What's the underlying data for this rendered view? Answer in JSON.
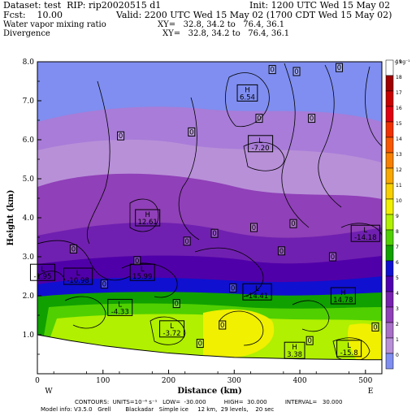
{
  "header": {
    "dataset": "Dataset: test  RIP: rip20020515 d1",
    "init": "Init: 1200 UTC Wed 15 May 02",
    "fcst": "Fcst:    10.00",
    "valid": "Valid: 2200 UTC Wed 15 May 02 (1700 CDT Wed 15 May 02)",
    "field1": "Water vapor mixing ratio",
    "field1_xy": "XY=   32.8, 34.2 to   76.4, 36.1",
    "field2": "Divergence",
    "field2_xy": "XY=   32.8, 34.2 to   76.4, 36.1"
  },
  "footer": {
    "line1": "CONTOURS:  UNITS=10⁻⁶ s⁻¹   LOW=  -30.000          HIGH=  30.000          INTERVAL=   30.000",
    "line2": "Model info: V3.5.0   Grell        Blackadar   Simple ice     12 km,  29 levels,    20 sec"
  },
  "chart_data": {
    "type": "heatmap",
    "xlabel": "Distance (km)",
    "ylabel": "Height (km)",
    "xlim": [
      0,
      525
    ],
    "ylim": [
      0,
      8
    ],
    "x_ticks": [
      0,
      100,
      200,
      300,
      400,
      500
    ],
    "y_ticks": [
      {
        "value": 1,
        "label": "1.0"
      },
      {
        "value": 2,
        "label": "2.0"
      },
      {
        "value": 3,
        "label": "3.0"
      },
      {
        "value": 4,
        "label": "4.0"
      },
      {
        "value": 5,
        "label": "5.0"
      },
      {
        "value": 6,
        "label": "6.0"
      },
      {
        "value": 7,
        "label": "7.0"
      },
      {
        "value": 8,
        "label": "8.0"
      }
    ],
    "x_end_labels": {
      "left": "W",
      "right": "E"
    },
    "colorbar": {
      "unit": "g kg⁻¹",
      "levels": [
        19,
        18,
        17,
        16,
        15,
        14,
        13,
        12,
        11,
        10,
        9,
        8,
        7,
        6,
        5,
        4,
        3,
        2,
        1,
        0
      ],
      "colors": [
        "#ffffff",
        "#a00000",
        "#c80000",
        "#e00010",
        "#f03000",
        "#f85800",
        "#f88000",
        "#f8a800",
        "#f8d000",
        "#f0f000",
        "#b0f000",
        "#50d000",
        "#10a000",
        "#1010d0",
        "#5000b0",
        "#7820b0",
        "#9040b8",
        "#a870c8",
        "#b890d8",
        "#7f8ef0"
      ]
    },
    "terrain_km": [
      [
        0,
        1.0
      ],
      [
        50,
        0.85
      ],
      [
        100,
        0.72
      ],
      [
        150,
        0.62
      ],
      [
        200,
        0.53
      ],
      [
        250,
        0.47
      ],
      [
        300,
        0.42
      ],
      [
        350,
        0.4
      ],
      [
        400,
        0.38
      ],
      [
        450,
        0.37
      ],
      [
        500,
        0.36
      ],
      [
        525,
        0.36
      ]
    ],
    "annotations": [
      {
        "type": "H",
        "value": "6.54",
        "x": 320,
        "y": 7.2
      },
      {
        "type": "L",
        "value": "-7.20",
        "x": 340,
        "y": 5.9
      },
      {
        "type": "H",
        "value": "12.61",
        "x": 168,
        "y": 4.0
      },
      {
        "type": "L",
        "value": "-14.18",
        "x": 500,
        "y": 3.6
      },
      {
        "type": "L",
        "value": "-1.95",
        "x": 8,
        "y": 2.6
      },
      {
        "type": "L",
        "value": "-10.98",
        "x": 62,
        "y": 2.5
      },
      {
        "type": "L",
        "value": "15.99",
        "x": 160,
        "y": 2.6
      },
      {
        "type": "L",
        "value": "-14.41",
        "x": 335,
        "y": 2.1
      },
      {
        "type": "H",
        "value": "14.78",
        "x": 466,
        "y": 2.0
      },
      {
        "type": "L",
        "value": "-4.33",
        "x": 126,
        "y": 1.7
      },
      {
        "type": "L",
        "value": "-3.72",
        "x": 205,
        "y": 1.15
      },
      {
        "type": "H",
        "value": "3.38",
        "x": 392,
        "y": 0.6
      },
      {
        "type": "L",
        "value": "-15.8",
        "x": 475,
        "y": 0.65
      }
    ],
    "zero_labels": [
      {
        "x": 55,
        "y": 3.2
      },
      {
        "x": 152,
        "y": 2.9
      },
      {
        "x": 235,
        "y": 6.2
      },
      {
        "x": 127,
        "y": 6.1
      },
      {
        "x": 228,
        "y": 3.4
      },
      {
        "x": 270,
        "y": 3.6
      },
      {
        "x": 330,
        "y": 3.75
      },
      {
        "x": 372,
        "y": 3.15
      },
      {
        "x": 390,
        "y": 3.85
      },
      {
        "x": 450,
        "y": 3.0
      },
      {
        "x": 358,
        "y": 7.8
      },
      {
        "x": 395,
        "y": 7.75
      },
      {
        "x": 460,
        "y": 7.85
      },
      {
        "x": 338,
        "y": 6.55
      },
      {
        "x": 418,
        "y": 6.55
      },
      {
        "x": 102,
        "y": 2.3
      },
      {
        "x": 212,
        "y": 1.8
      },
      {
        "x": 282,
        "y": 1.25
      },
      {
        "x": 298,
        "y": 2.2
      },
      {
        "x": 248,
        "y": 0.78
      },
      {
        "x": 415,
        "y": 0.85
      },
      {
        "x": 515,
        "y": 1.2
      }
    ]
  }
}
